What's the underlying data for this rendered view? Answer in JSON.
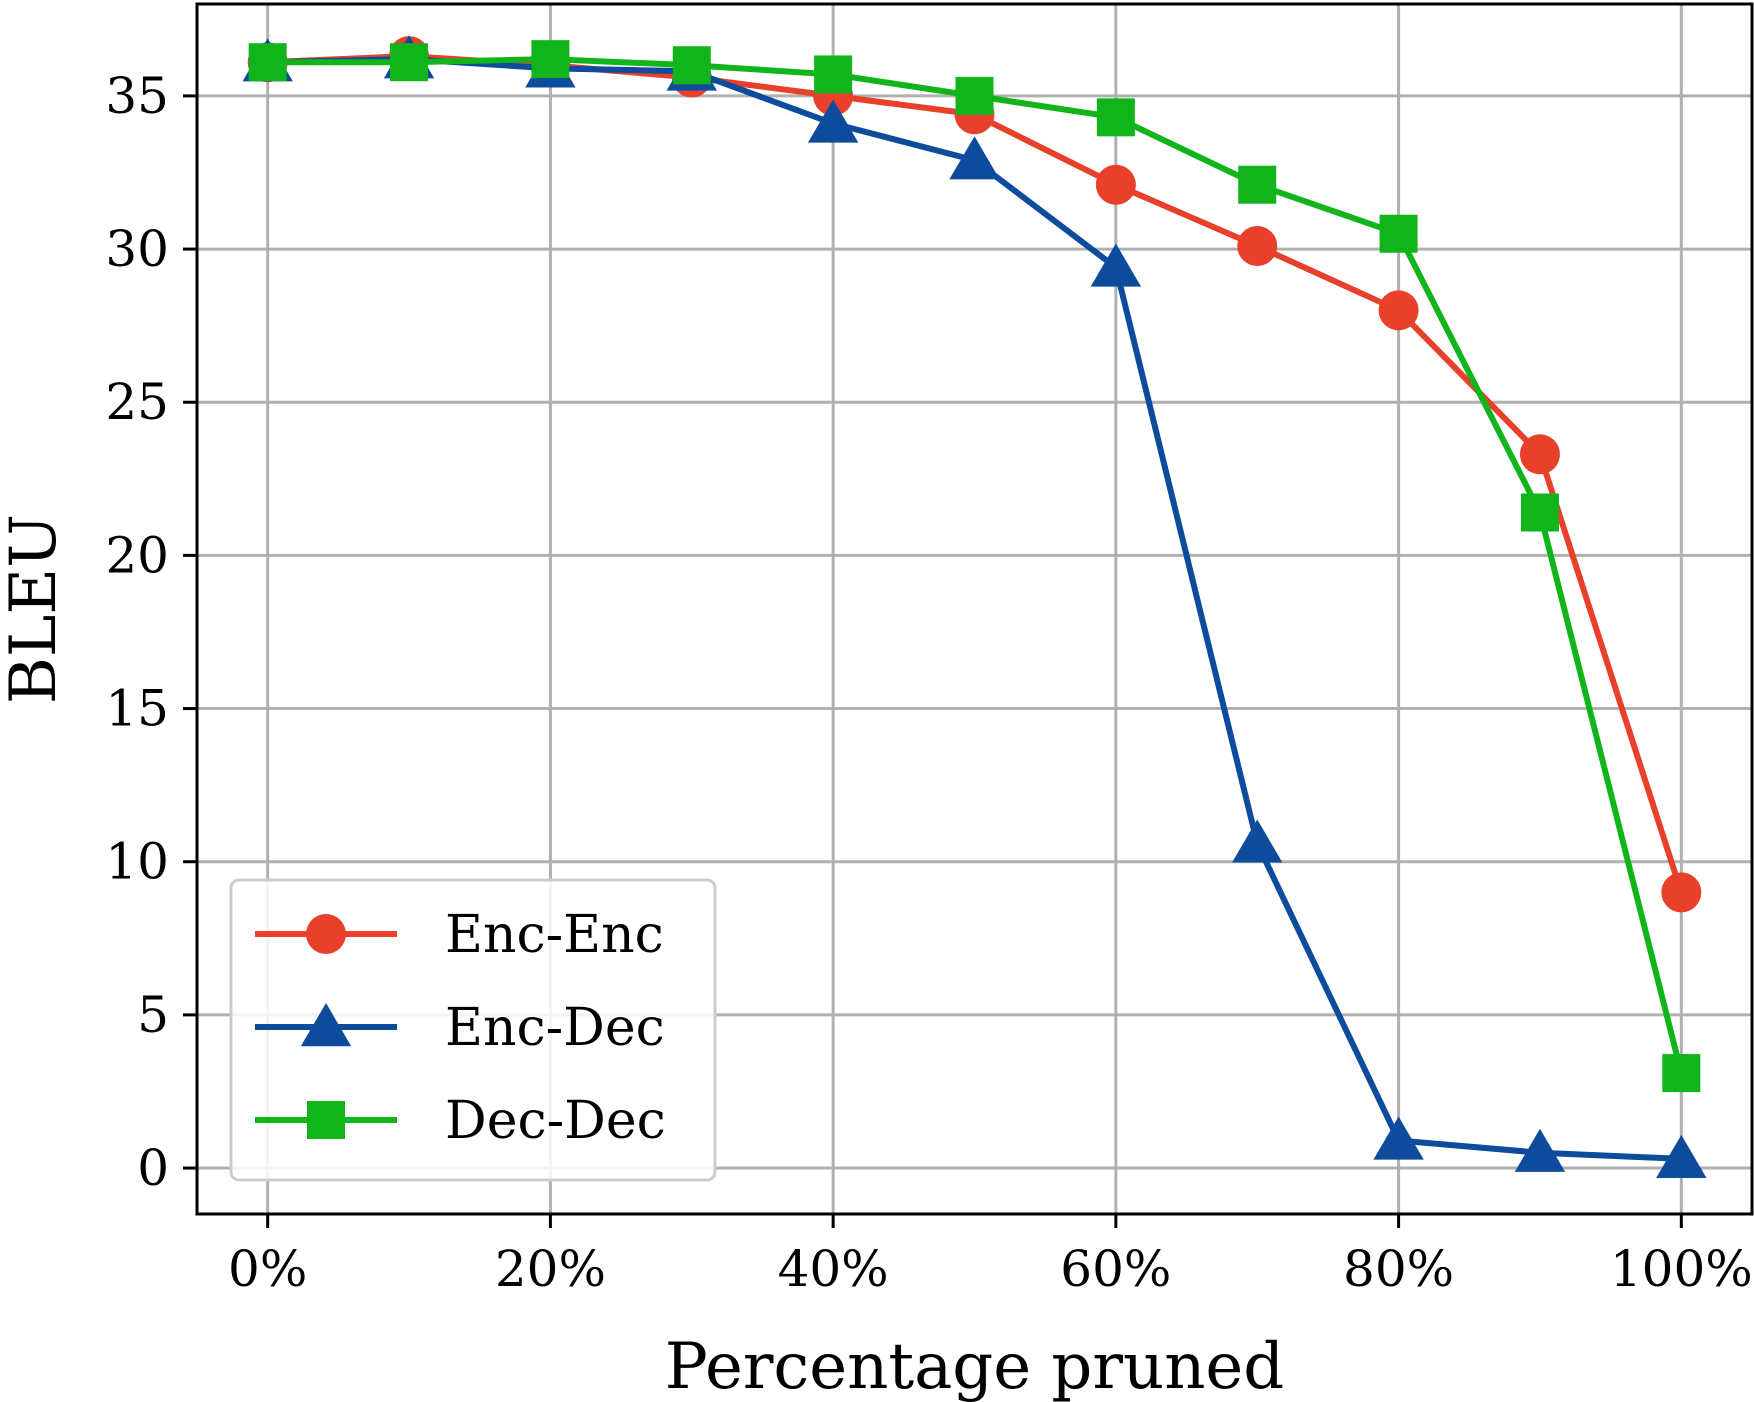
{
  "chart_data": {
    "type": "line",
    "title": "",
    "xlabel": "Percentage pruned",
    "ylabel": "BLEU",
    "x": [
      0,
      10,
      20,
      30,
      40,
      50,
      60,
      70,
      80,
      90,
      100
    ],
    "x_ticks": [
      0,
      20,
      40,
      60,
      80,
      100
    ],
    "x_tick_labels": [
      "0%",
      "20%",
      "40%",
      "60%",
      "80%",
      "100%"
    ],
    "y_ticks": [
      0,
      5,
      10,
      15,
      20,
      25,
      30,
      35
    ],
    "y_tick_labels": [
      "0",
      "5",
      "10",
      "15",
      "20",
      "25",
      "30",
      "35"
    ],
    "xlim": [
      -5,
      105
    ],
    "ylim": [
      -1.5,
      38
    ],
    "grid": true,
    "legend_position": "bottom-left",
    "series": [
      {
        "name": "Enc-Enc",
        "color": "#e8402a",
        "marker": "circle",
        "values": [
          36.1,
          36.3,
          36.0,
          35.6,
          35.0,
          34.4,
          32.1,
          30.1,
          28.0,
          23.3,
          9.0
        ]
      },
      {
        "name": "Enc-Dec",
        "color": "#0d4c9c",
        "marker": "triangle",
        "values": [
          36.1,
          36.2,
          35.9,
          35.8,
          34.1,
          32.9,
          29.4,
          10.6,
          0.9,
          0.5,
          0.3
        ]
      },
      {
        "name": "Dec-Dec",
        "color": "#11b51b",
        "marker": "square",
        "values": [
          36.1,
          36.1,
          36.2,
          36.0,
          35.7,
          35.0,
          34.3,
          32.1,
          30.5,
          21.4,
          3.1
        ]
      }
    ]
  }
}
